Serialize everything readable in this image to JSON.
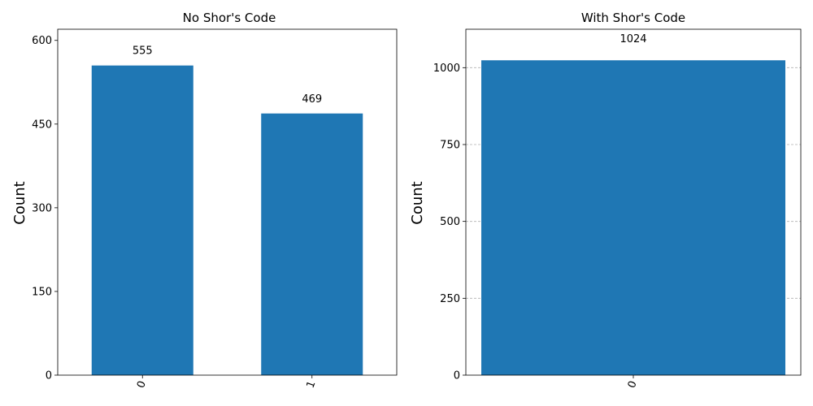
{
  "chart_data": [
    {
      "type": "bar",
      "title": "No Shor's Code",
      "xlabel": "",
      "ylabel": "Count",
      "categories": [
        "0",
        "1"
      ],
      "values": [
        555,
        469
      ],
      "data_labels": [
        "555",
        "469"
      ],
      "ylim": [
        0,
        620
      ],
      "yticks": [
        0,
        150,
        300,
        450,
        600
      ],
      "grid": false,
      "bar_color": "#1f77b4"
    },
    {
      "type": "bar",
      "title": "With Shor's Code",
      "xlabel": "",
      "ylabel": "Count",
      "categories": [
        "0"
      ],
      "values": [
        1024
      ],
      "data_labels": [
        "1024"
      ],
      "ylim": [
        0,
        1125
      ],
      "yticks": [
        0,
        250,
        500,
        750,
        1000
      ],
      "grid": true,
      "bar_color": "#1f77b4"
    }
  ]
}
